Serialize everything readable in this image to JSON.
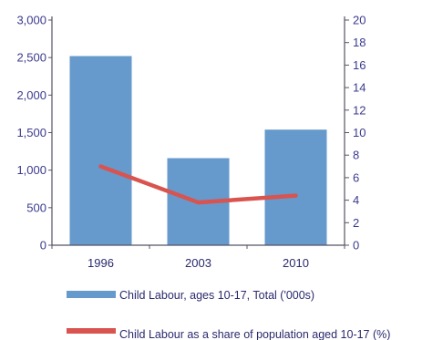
{
  "chart_data": {
    "type": "bar",
    "categories": [
      "1996",
      "2003",
      "2010"
    ],
    "series": [
      {
        "name": "Child Labour, ages 10-17, Total ('000s)",
        "type": "bar",
        "axis": "left",
        "values": [
          2520,
          1160,
          1540
        ],
        "color": "#6699cc"
      },
      {
        "name": "Child Labour as a share of population aged 10-17 (%)",
        "type": "line",
        "axis": "right",
        "values": [
          7.0,
          3.8,
          4.4
        ],
        "color": "#d9534f"
      }
    ],
    "left_axis": {
      "ylim": [
        0,
        3000
      ],
      "ticks": [
        "0",
        "500",
        "1,000",
        "1,500",
        "2,000",
        "2,500",
        "3,000"
      ],
      "tick_values": [
        0,
        500,
        1000,
        1500,
        2000,
        2500,
        3000
      ]
    },
    "right_axis": {
      "ylim": [
        0,
        20
      ],
      "ticks": [
        "0",
        "2",
        "4",
        "6",
        "8",
        "10",
        "12",
        "14",
        "16",
        "18",
        "20"
      ],
      "tick_values": [
        0,
        2,
        4,
        6,
        8,
        10,
        12,
        14,
        16,
        18,
        20
      ]
    },
    "grid": false,
    "legend_position": "bottom"
  }
}
